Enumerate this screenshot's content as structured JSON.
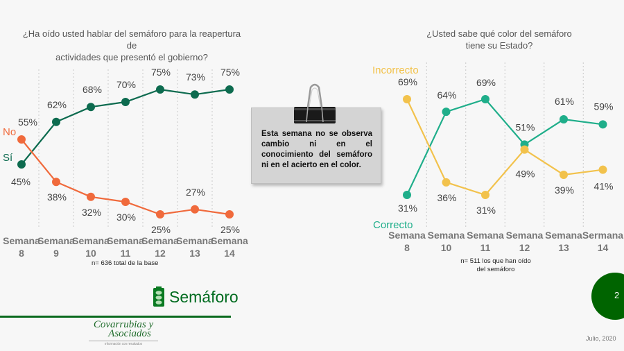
{
  "left_chart": {
    "title_line1": "¿Ha oído usted hablar del semáforo para la reapertura de",
    "title_line2": "actividades que presentó el gobierno?",
    "base_note": "n= 636 total de la base"
  },
  "right_chart": {
    "title_line1": "¿Usted sabe qué color del semáforo",
    "title_line2": "tiene su Estado?",
    "base_note_line1": "n= 511 los que han oído",
    "base_note_line2": "del semáforo"
  },
  "note": {
    "text": "Esta semana no se observa cambio ni en el conocimiento del semáforo ni en el acierto en el color."
  },
  "brand": {
    "label": "Semáforo"
  },
  "logo": {
    "name_line1": "Covarrubias y",
    "name_line2": "Asociados",
    "tagline": "Información con resultados"
  },
  "page": {
    "number": "2",
    "date": "Julio, 2020"
  },
  "colors": {
    "si": "#0d6b4f",
    "no": "#f06a3c",
    "correcto": "#1fae8a",
    "incorrecto": "#f2c24c",
    "brand_green": "#006400",
    "label": "#444444"
  },
  "chart_data": [
    {
      "type": "line",
      "title": "¿Ha oído usted hablar del semáforo para la reapertura de actividades que presentó el gobierno?",
      "categories": [
        "Semana 8",
        "Semana 9",
        "Semana 10",
        "Semana 11",
        "Semana 12",
        "Semana 13",
        "Semana 14"
      ],
      "category_line1": [
        "Semana",
        "Semana",
        "Semana",
        "Semana",
        "Semana",
        "Semana",
        "Semana"
      ],
      "category_line2": [
        "8",
        "9",
        "10",
        "11",
        "12",
        "13",
        "14"
      ],
      "series": [
        {
          "name": "Sí",
          "values": [
            45,
            62,
            68,
            70,
            75,
            73,
            75
          ],
          "color": "#0d6b4f"
        },
        {
          "name": "No",
          "values": [
            55,
            38,
            32,
            30,
            25,
            27,
            25
          ],
          "color": "#f06a3c"
        }
      ],
      "value_suffix": "%",
      "grid": "vertical dotted",
      "note": "n= 636 total de la base"
    },
    {
      "type": "line",
      "title": "¿Usted sabe qué color del semáforo tiene su Estado?",
      "categories": [
        "Semana 8",
        "Semana 10",
        "Semana 11",
        "Semana 12",
        "Semana 13",
        "Sermana 14"
      ],
      "category_line1": [
        "Semana",
        "Semana",
        "Semana",
        "Semana",
        "Semana",
        "Sermana"
      ],
      "category_line2": [
        "8",
        "10",
        "11",
        "12",
        "13",
        "14"
      ],
      "series": [
        {
          "name": "Correcto",
          "values": [
            31,
            64,
            69,
            51,
            61,
            59
          ],
          "color": "#1fae8a"
        },
        {
          "name": "Incorrecto",
          "values": [
            69,
            36,
            31,
            49,
            39,
            41
          ],
          "color": "#f2c24c"
        }
      ],
      "value_suffix": "%",
      "grid": "vertical dotted",
      "note": "n= 511 los que han oído del semáforo"
    }
  ]
}
